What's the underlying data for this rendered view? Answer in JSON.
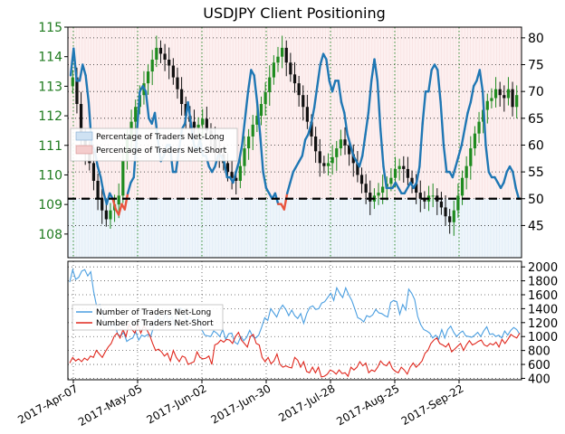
{
  "chart_data": [
    {
      "type": "candlestick+line",
      "title": "USDJPY Client Positioning",
      "left_axis": {
        "range": [
          107.2,
          115.0
        ],
        "ticks": [
          108,
          109,
          110,
          111,
          112,
          113,
          114,
          115
        ]
      },
      "right_axis": {
        "range": [
          39,
          82
        ],
        "ticks": [
          45,
          50,
          55,
          60,
          65,
          70,
          75,
          80
        ]
      },
      "reference_line": 50,
      "legend": {
        "position": "center-left",
        "entries": [
          {
            "label": "Percentage of Traders Net-Long",
            "color": "#cfe2f3"
          },
          {
            "label": "Percentage of Traders Net-Short",
            "color": "#f4cccc"
          }
        ]
      },
      "net_long_pct": {
        "colors": {
          "above_50": "#1f77b4",
          "below_50": "#e8543d"
        },
        "values": [
          73,
          78,
          72,
          72,
          75,
          73,
          68,
          60,
          59,
          56,
          54,
          51,
          49,
          51,
          50,
          48,
          47,
          49,
          48,
          51,
          53,
          54,
          62,
          70,
          71,
          70,
          65,
          64,
          66,
          61,
          57,
          58,
          60,
          60,
          55,
          55,
          59,
          63,
          64,
          68,
          64,
          60,
          59,
          61,
          58,
          58,
          56,
          55,
          56,
          58,
          58,
          57,
          54,
          54,
          53,
          55,
          57,
          60,
          65,
          70,
          74,
          73,
          68,
          62,
          55,
          52,
          51,
          50,
          51,
          49,
          49,
          48,
          51,
          53,
          55,
          56,
          57,
          58,
          61,
          62,
          64,
          67,
          71,
          75,
          77,
          76,
          72,
          70,
          72,
          72,
          68,
          66,
          62,
          60,
          58,
          57,
          56,
          58,
          62,
          66,
          72,
          76,
          72,
          63,
          56,
          52,
          52,
          52,
          53,
          52,
          51,
          51,
          52,
          53,
          52,
          53,
          56,
          64,
          70,
          70,
          74,
          75,
          74,
          68,
          60,
          55,
          55,
          54,
          56,
          58,
          60,
          63,
          66,
          68,
          71,
          72,
          74,
          70,
          60,
          55,
          54,
          54,
          53,
          52,
          53,
          55,
          56,
          55,
          52,
          50
        ]
      },
      "candles_close": [
        113.3,
        112.4,
        111.3,
        110.8,
        110.4,
        109.8,
        109.2,
        108.8,
        108.5,
        108.8,
        109.0,
        109.3,
        110.5,
        111.2,
        111.8,
        112.3,
        112.7,
        113.1,
        113.5,
        113.9,
        114.3,
        114.1,
        113.9,
        113.7,
        113.3,
        112.9,
        112.4,
        112.0,
        111.8,
        111.6,
        111.7,
        111.9,
        111.5,
        111.3,
        110.9,
        110.7,
        110.4,
        110.1,
        109.9,
        109.8,
        110.3,
        110.9,
        111.3,
        111.7,
        112.0,
        112.4,
        112.8,
        113.3,
        113.8,
        114.0,
        114.3,
        113.8,
        113.4,
        113.1,
        112.7,
        112.3,
        111.8,
        111.3,
        110.8,
        110.4,
        110.3,
        110.4,
        110.6,
        110.9,
        111.2,
        111.0,
        110.7,
        110.4,
        110.0,
        109.7,
        109.4,
        109.1,
        109.3,
        109.4,
        109.6,
        109.7,
        109.9,
        110.2,
        110.3,
        110.2,
        109.9,
        109.7,
        109.4,
        109.2,
        109.1,
        109.3,
        109.3,
        109.1,
        108.9,
        108.6,
        108.4,
        108.8,
        109.3,
        109.9,
        110.3,
        110.9,
        111.4,
        111.8,
        112.2,
        112.5,
        112.6,
        112.9,
        112.7,
        112.6,
        112.9,
        112.3,
        112.7
      ],
      "x_ticks": [
        "2017-Apr-07",
        "2017-May-05",
        "2017-Jun-02",
        "2017-Jun-30",
        "2017-Jul-28",
        "2017-Aug-25",
        "2017-Sep-22"
      ]
    },
    {
      "type": "line",
      "y_range": [
        380,
        2080
      ],
      "y_ticks": [
        400,
        600,
        800,
        1000,
        1200,
        1400,
        1600,
        1800,
        2000
      ],
      "legend": {
        "position": "left",
        "entries": [
          {
            "label": "Number of Traders Net-Long",
            "color": "#4a9ee0"
          },
          {
            "label": "Number of Traders Net-Short",
            "color": "#e0281e"
          }
        ]
      },
      "series": [
        {
          "name": "Number of Traders Net-Long",
          "values": [
            1780,
            1960,
            1820,
            1850,
            1940,
            1960,
            1870,
            1930,
            1640,
            1430,
            1460,
            1320,
            1180,
            1150,
            1150,
            1190,
            1030,
            1010,
            1060,
            930,
            960,
            980,
            1070,
            950,
            1020,
            1000,
            1030,
            1000,
            1150,
            1320,
            1260,
            1200,
            1330,
            1190,
            1300,
            1140,
            1400,
            1410,
            1360,
            1200,
            1280,
            1230,
            1220,
            1280,
            1100,
            1020,
            1010,
            1000,
            1080,
            1050,
            1000,
            1100,
            960,
            1040,
            1050,
            920,
            890,
            1000,
            940,
            990,
            1090,
            1000,
            980,
            1020,
            1140,
            1270,
            1230,
            1400,
            1340,
            1280,
            1390,
            1450,
            1390,
            1300,
            1380,
            1300,
            1260,
            1330,
            1190,
            1330,
            1420,
            1440,
            1390,
            1400,
            1480,
            1500,
            1560,
            1620,
            1520,
            1700,
            1620,
            1560,
            1700,
            1600,
            1520,
            1400,
            1270,
            1250,
            1210,
            1300,
            1280,
            1310,
            1390,
            1340,
            1330,
            1300,
            1280,
            1490,
            1520,
            1500,
            1320,
            1460,
            1380,
            1680,
            1620,
            1530,
            1290,
            1170,
            1100,
            1080,
            1050,
            980,
            1020,
            960,
            1100,
            980,
            1100,
            1150,
            1060,
            1000,
            1050,
            1080,
            1010,
            1000,
            990,
            1020,
            1060,
            1000,
            1080,
            1140,
            1030,
            1040,
            1000,
            1020,
            980,
            1080,
            1020,
            1090,
            1130,
            1100,
            1030
          ]
        },
        {
          "name": "Number of Traders Net-Short",
          "values": [
            620,
            700,
            650,
            680,
            640,
            690,
            660,
            720,
            700,
            800,
            750,
            700,
            780,
            850,
            900,
            1000,
            1050,
            980,
            1100,
            1000,
            1180,
            1100,
            1050,
            1180,
            1050,
            1150,
            1100,
            1020,
            900,
            800,
            820,
            780,
            720,
            760,
            650,
            800,
            700,
            640,
            720,
            700,
            600,
            620,
            640,
            780,
            700,
            680,
            690,
            720,
            600,
            880,
            900,
            950,
            920,
            960,
            950,
            900,
            1000,
            1060,
            950,
            900,
            850,
            1000,
            1030,
            900,
            880,
            700,
            640,
            700,
            610,
            650,
            750,
            600,
            560,
            580,
            560,
            550,
            700,
            660,
            560,
            640,
            500,
            480,
            560,
            480,
            560,
            420,
            430,
            460,
            520,
            500,
            460,
            520,
            470,
            480,
            430,
            560,
            520,
            560,
            640,
            580,
            620,
            480,
            520,
            500,
            560,
            650,
            600,
            580,
            640,
            540,
            500,
            480,
            560,
            520,
            460,
            560,
            620,
            560,
            600,
            650,
            760,
            800,
            900,
            950,
            980,
            900,
            880,
            850,
            900,
            780,
            820,
            860,
            900,
            800,
            880,
            940,
            880,
            900,
            930,
            950,
            880,
            860,
            900,
            880,
            920,
            850,
            960,
            900,
            960,
            1030,
            1000,
            980,
            1050
          ]
        }
      ],
      "x_ticks": [
        "2017-Apr-07",
        "2017-May-05",
        "2017-Jun-02",
        "2017-Jun-30",
        "2017-Jul-28",
        "2017-Aug-25",
        "2017-Sep-22"
      ]
    }
  ]
}
